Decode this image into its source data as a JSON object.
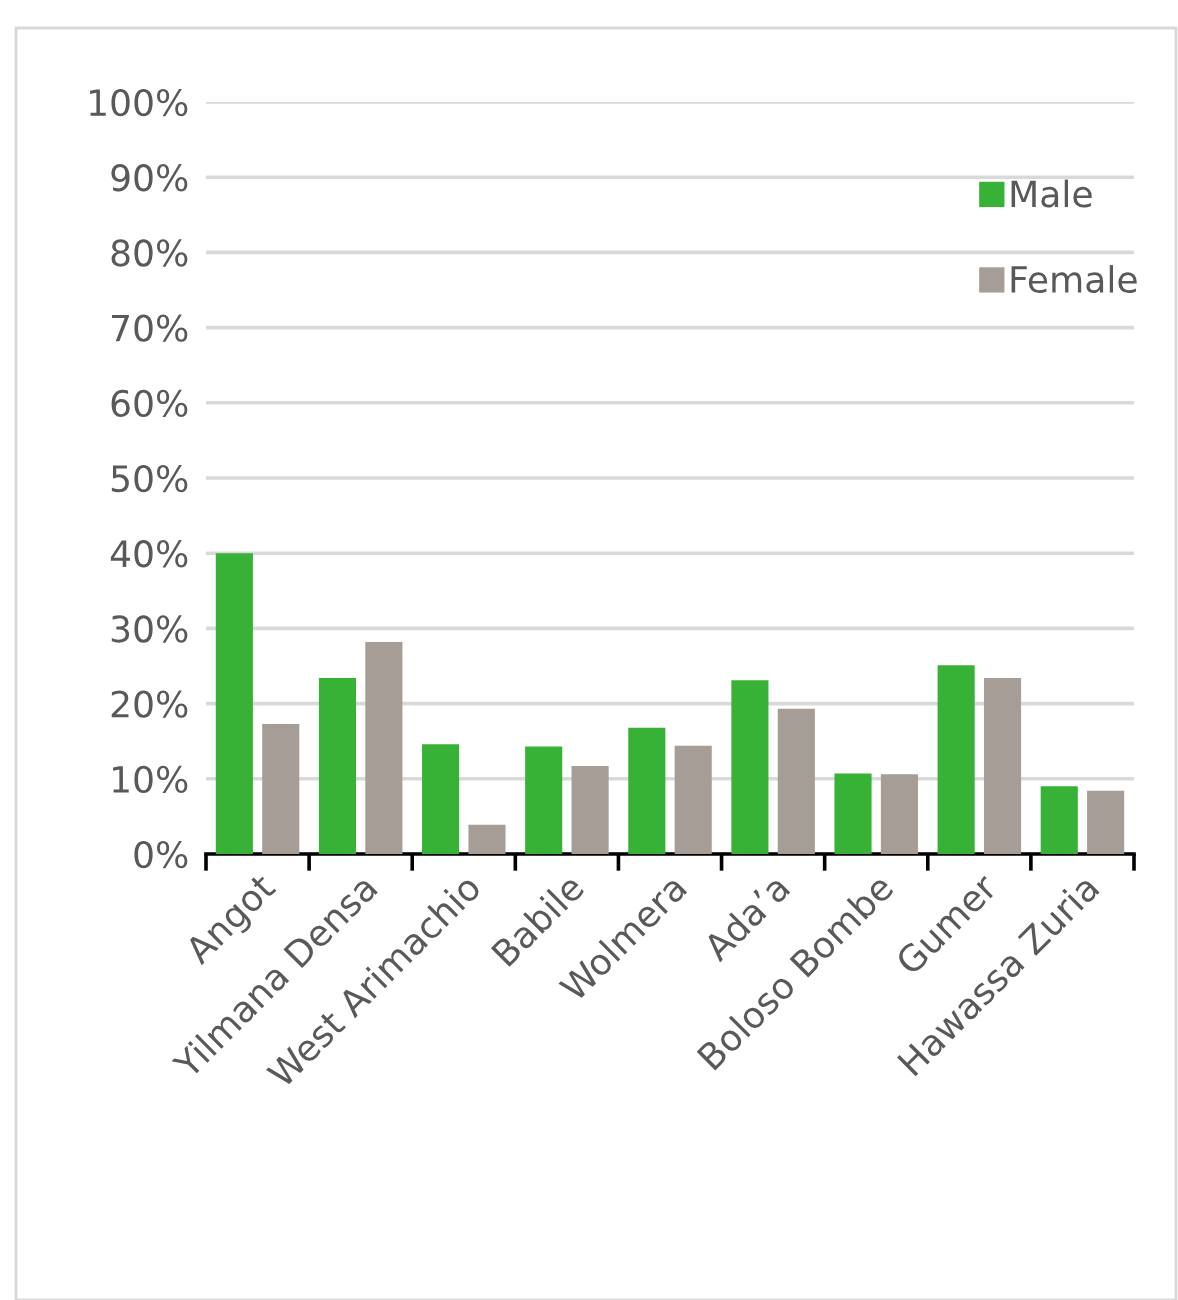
{
  "chart_data": {
    "type": "bar",
    "categories": [
      "Angot",
      "Yilmana Densa",
      "West Arimachio",
      "Babile",
      "Wolmera",
      "Ada’a",
      "Boloso Bombe",
      "Gumer",
      "Hawassa Zuria"
    ],
    "series": [
      {
        "name": "Male",
        "color": "#37b236",
        "values": [
          40.0,
          23.4,
          14.6,
          14.3,
          16.8,
          23.1,
          10.7,
          25.1,
          9.0
        ]
      },
      {
        "name": "Female",
        "color": "#a59d96",
        "values": [
          17.3,
          28.2,
          3.9,
          11.7,
          14.4,
          19.3,
          10.6,
          23.4,
          8.4
        ]
      }
    ],
    "ylim": [
      0,
      100
    ],
    "yticks": [
      {
        "value": 0,
        "label": "0%"
      },
      {
        "value": 10,
        "label": "10%"
      },
      {
        "value": 20,
        "label": "20%"
      },
      {
        "value": 30,
        "label": "30%"
      },
      {
        "value": 40,
        "label": "40%"
      },
      {
        "value": 50,
        "label": "50%"
      },
      {
        "value": 60,
        "label": "60%"
      },
      {
        "value": 70,
        "label": "70%"
      },
      {
        "value": 80,
        "label": "80%"
      },
      {
        "value": 90,
        "label": "90%"
      },
      {
        "value": 100,
        "label": "100%"
      }
    ],
    "grid": "y",
    "legend": "top right"
  }
}
